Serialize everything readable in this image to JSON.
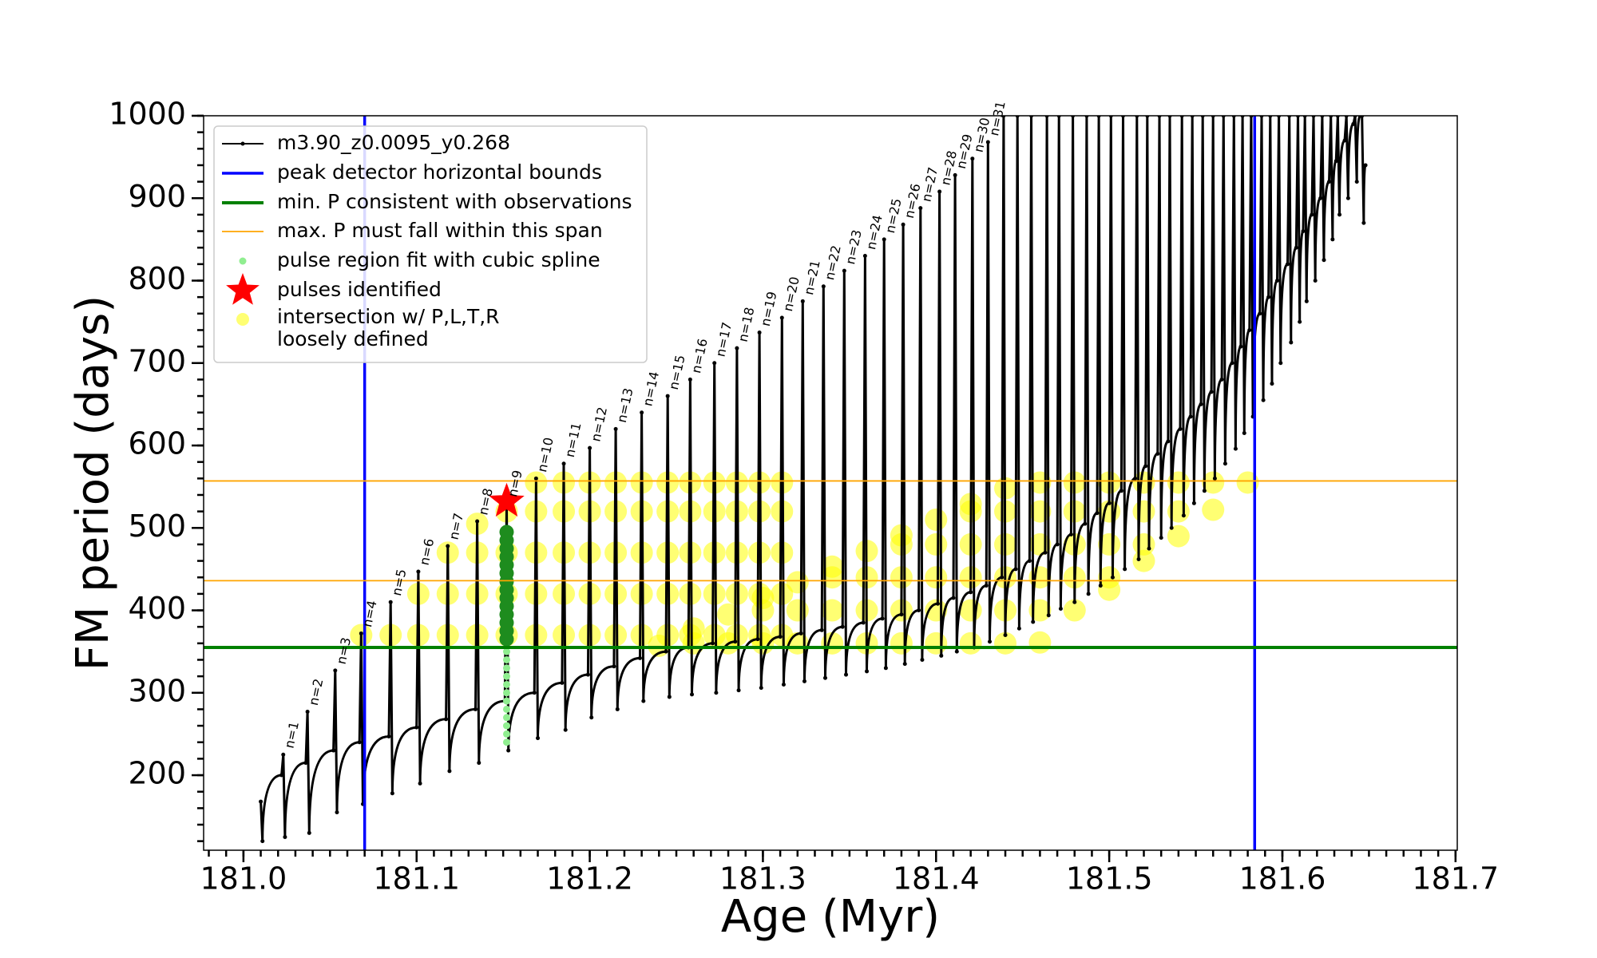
{
  "chart_data": {
    "type": "line",
    "xlabel": "Age (Myr)",
    "ylabel": "FM period (days)",
    "xlim": [
      180.977,
      181.701
    ],
    "ylim": [
      109,
      1000
    ],
    "xticks": [
      {
        "value": 181.0,
        "label": "181.0"
      },
      181.1,
      181.2,
      181.3,
      181.4,
      181.5,
      181.6,
      181.7
    ],
    "yticks": [
      200,
      300,
      400,
      500,
      600,
      700,
      800,
      900,
      1000
    ],
    "minor_ticks": {
      "x": 0.01,
      "y": 20
    },
    "grid": false,
    "legend": "upper left",
    "series": [
      {
        "name": "m3.90_z0.0095_y0.268",
        "type": "line",
        "color": "#000000",
        "x": [
          181.01,
          181.011,
          181.022,
          181.023,
          181.024,
          181.036,
          181.037,
          181.038,
          181.052,
          181.053,
          181.054,
          181.067,
          181.068,
          181.069,
          181.084,
          181.085,
          181.086,
          181.1,
          181.101,
          181.102,
          181.117,
          181.118,
          181.119,
          181.134,
          181.135,
          181.136,
          181.151,
          181.152,
          181.153,
          181.168,
          181.169,
          181.17,
          181.184,
          181.185,
          181.186,
          181.199,
          181.2,
          181.201,
          181.214,
          181.215,
          181.216,
          181.229,
          181.23,
          181.231,
          181.244,
          181.245,
          181.246,
          181.257,
          181.258,
          181.259,
          181.271,
          181.272,
          181.273,
          181.284,
          181.285,
          181.286,
          181.297,
          181.298,
          181.299,
          181.31,
          181.311,
          181.312,
          181.322,
          181.323,
          181.324,
          181.334,
          181.335,
          181.336,
          181.346,
          181.347,
          181.348,
          181.358,
          181.359,
          181.36,
          181.369,
          181.37,
          181.371,
          181.38,
          181.381,
          181.382,
          181.39,
          181.391,
          181.392,
          181.401,
          181.402,
          181.403,
          181.41,
          181.411,
          181.412,
          181.42,
          181.421,
          181.422,
          181.429,
          181.43,
          181.431,
          181.438,
          181.439,
          181.44,
          181.446,
          181.447,
          181.448,
          181.454,
          181.455,
          181.456,
          181.463,
          181.464,
          181.465,
          181.47,
          181.471,
          181.472,
          181.478,
          181.479,
          181.48,
          181.486,
          181.487,
          181.488,
          181.493,
          181.494,
          181.495,
          181.5,
          181.501,
          181.502,
          181.507,
          181.508,
          181.509,
          181.515,
          181.516,
          181.517,
          181.521,
          181.522,
          181.523,
          181.528,
          181.529,
          181.53,
          181.534,
          181.535,
          181.536,
          181.541,
          181.542,
          181.543,
          181.547,
          181.548,
          181.549,
          181.553,
          181.554,
          181.555,
          181.559,
          181.56,
          181.561,
          181.565,
          181.566,
          181.567,
          181.571,
          181.572,
          181.573,
          181.576,
          181.577,
          181.578,
          181.581,
          181.582,
          181.583,
          181.587,
          181.588,
          181.589,
          181.592,
          181.593,
          181.594,
          181.597,
          181.598,
          181.599,
          181.603,
          181.604,
          181.605,
          181.608,
          181.609,
          181.61,
          181.612,
          181.613,
          181.614,
          181.617,
          181.618,
          181.619,
          181.622,
          181.623,
          181.624,
          181.627,
          181.628,
          181.629,
          181.631,
          181.632,
          181.633,
          181.636,
          181.637,
          181.638,
          181.641,
          181.642,
          181.643,
          181.645,
          181.646,
          181.647,
          181.648
        ],
        "values": [
          168,
          120,
          200,
          225,
          125,
          215,
          277,
          130,
          230,
          327,
          155,
          240,
          372,
          165,
          247,
          410,
          178,
          258,
          447,
          190,
          268,
          478,
          205,
          280,
          508,
          215,
          290,
          530,
          230,
          300,
          560,
          245,
          312,
          578,
          255,
          322,
          597,
          270,
          332,
          620,
          280,
          342,
          640,
          290,
          350,
          660,
          295,
          355,
          680,
          298,
          360,
          700,
          300,
          362,
          718,
          303,
          365,
          737,
          306,
          368,
          755,
          310,
          372,
          775,
          314,
          376,
          793,
          318,
          380,
          812,
          322,
          385,
          830,
          326,
          390,
          850,
          330,
          395,
          868,
          335,
          400,
          888,
          340,
          408,
          908,
          345,
          415,
          928,
          350,
          422,
          948,
          355,
          430,
          968,
          362,
          440,
          1000,
          370,
          450,
          1000,
          378,
          460,
          1000,
          386,
          470,
          1000,
          394,
          480,
          1000,
          402,
          492,
          1000,
          410,
          505,
          1000,
          420,
          518,
          1000,
          430,
          530,
          1000,
          440,
          545,
          1000,
          450,
          560,
          1000,
          462,
          575,
          1000,
          475,
          590,
          1000,
          488,
          605,
          1000,
          500,
          620,
          1000,
          515,
          635,
          1000,
          530,
          650,
          1000,
          545,
          665,
          1000,
          560,
          680,
          1000,
          578,
          700,
          1000,
          596,
          720,
          1000,
          615,
          740,
          1000,
          635,
          760,
          1000,
          655,
          780,
          1000,
          675,
          800,
          1000,
          700,
          820,
          1000,
          725,
          840,
          1000,
          750,
          860,
          1000,
          775,
          880,
          1000,
          800,
          900,
          1000,
          825,
          920,
          1000,
          850,
          945,
          1000,
          880,
          970,
          1000,
          900,
          990,
          1000,
          920,
          1000,
          1000,
          870,
          940
        ]
      },
      {
        "name": "pulse region fit with cubic spline",
        "type": "scatter",
        "color": "#90ee90",
        "x": [
          181.152,
          181.152,
          181.152,
          181.152,
          181.152,
          181.152,
          181.152,
          181.152,
          181.152,
          181.152,
          181.152,
          181.152
        ],
        "values": [
          240,
          250,
          260,
          270,
          280,
          290,
          300,
          310,
          320,
          330,
          340,
          350
        ]
      },
      {
        "type": "scatter",
        "color": "#1e8c1e",
        "x": [
          181.152,
          181.152,
          181.152,
          181.152,
          181.152,
          181.152,
          181.152,
          181.152,
          181.152,
          181.152,
          181.152,
          181.152,
          181.152,
          181.152
        ],
        "values": [
          365,
          375,
          385,
          395,
          405,
          415,
          425,
          435,
          445,
          455,
          465,
          475,
          485,
          495
        ]
      },
      {
        "name": "pulses identified",
        "type": "star",
        "color": "#ff0000",
        "x": [
          181.152
        ],
        "values": [
          532
        ]
      },
      {
        "name": "intersection w/ P,L,T,R\nloosely defined",
        "type": "scatter",
        "color": "#ffff00",
        "x": [
          181.068,
          181.085,
          181.101,
          181.101,
          181.118,
          181.118,
          181.118,
          181.135,
          181.135,
          181.135,
          181.135,
          181.152,
          181.152,
          181.152,
          181.152,
          181.169,
          181.169,
          181.169,
          181.169,
          181.169,
          181.185,
          181.185,
          181.185,
          181.185,
          181.185,
          181.2,
          181.2,
          181.2,
          181.2,
          181.2,
          181.215,
          181.215,
          181.215,
          181.215,
          181.215,
          181.23,
          181.23,
          181.23,
          181.23,
          181.23,
          181.245,
          181.245,
          181.245,
          181.245,
          181.245,
          181.258,
          181.258,
          181.258,
          181.258,
          181.258,
          181.272,
          181.272,
          181.272,
          181.272,
          181.272,
          181.285,
          181.285,
          181.285,
          181.285,
          181.285,
          181.298,
          181.298,
          181.298,
          181.298,
          181.298,
          181.311,
          181.311,
          181.311,
          181.311,
          181.311,
          181.24,
          181.26,
          181.26,
          181.28,
          181.28,
          181.3,
          181.3,
          181.3,
          181.32,
          181.32,
          181.32,
          181.34,
          181.34,
          181.34,
          181.34,
          181.36,
          181.36,
          181.36,
          181.36,
          181.38,
          181.38,
          181.38,
          181.38,
          181.38,
          181.4,
          181.4,
          181.4,
          181.4,
          181.4,
          181.42,
          181.42,
          181.42,
          181.42,
          181.42,
          181.42,
          181.44,
          181.44,
          181.44,
          181.44,
          181.44,
          181.44,
          181.46,
          181.46,
          181.46,
          181.46,
          181.46,
          181.46,
          181.48,
          181.48,
          181.48,
          181.48,
          181.48,
          181.5,
          181.5,
          181.5,
          181.5,
          181.5,
          181.52,
          181.52,
          181.52,
          181.52,
          181.54,
          181.54,
          181.54,
          181.56,
          181.56,
          181.58
        ],
        "values": [
          370,
          370,
          370,
          420,
          370,
          420,
          470,
          370,
          420,
          470,
          505,
          370,
          420,
          470,
          520,
          370,
          420,
          470,
          520,
          555,
          370,
          420,
          470,
          520,
          555,
          370,
          420,
          470,
          520,
          555,
          370,
          420,
          470,
          520,
          555,
          370,
          420,
          470,
          520,
          555,
          370,
          420,
          470,
          520,
          555,
          370,
          420,
          470,
          520,
          555,
          370,
          420,
          470,
          520,
          555,
          370,
          420,
          470,
          520,
          555,
          370,
          420,
          470,
          520,
          555,
          370,
          420,
          470,
          520,
          555,
          357,
          360,
          378,
          360,
          395,
          360,
          400,
          415,
          360,
          400,
          434,
          360,
          400,
          440,
          453,
          360,
          400,
          440,
          472,
          360,
          400,
          440,
          480,
          491,
          360,
          400,
          440,
          480,
          510,
          360,
          400,
          440,
          480,
          520,
          529,
          360,
          400,
          440,
          480,
          520,
          548,
          361,
          400,
          440,
          480,
          520,
          555,
          400,
          440,
          480,
          520,
          555,
          425,
          440,
          480,
          520,
          555,
          460,
          480,
          520,
          555,
          490,
          520,
          555,
          522,
          555,
          555
        ]
      }
    ],
    "reference_lines": [
      {
        "name": "peak detector horizontal bounds",
        "color": "#0000ff",
        "orientation": "vertical",
        "values": [
          181.07,
          181.584
        ]
      },
      {
        "name": "min. P consistent with observations",
        "color": "#008000",
        "orientation": "horizontal",
        "values": [
          355
        ]
      },
      {
        "name": "max. P must fall within this span",
        "color": "#ffa500",
        "orientation": "horizontal",
        "values": [
          436,
          557
        ]
      }
    ],
    "annotations": [
      {
        "text": "n=1",
        "x": 181.023,
        "y": 225
      },
      {
        "text": "n=2",
        "x": 181.037,
        "y": 277
      },
      {
        "text": "n=3",
        "x": 181.053,
        "y": 327
      },
      {
        "text": "n=4",
        "x": 181.068,
        "y": 372
      },
      {
        "text": "n=5",
        "x": 181.085,
        "y": 410
      },
      {
        "text": "n=6",
        "x": 181.101,
        "y": 447
      },
      {
        "text": "n=7",
        "x": 181.118,
        "y": 478
      },
      {
        "text": "n=8",
        "x": 181.135,
        "y": 508
      },
      {
        "text": "n=9",
        "x": 181.152,
        "y": 530
      },
      {
        "text": "n=10",
        "x": 181.169,
        "y": 560
      },
      {
        "text": "n=11",
        "x": 181.185,
        "y": 578
      },
      {
        "text": "n=12",
        "x": 181.2,
        "y": 597
      },
      {
        "text": "n=13",
        "x": 181.215,
        "y": 620
      },
      {
        "text": "n=14",
        "x": 181.23,
        "y": 640
      },
      {
        "text": "n=15",
        "x": 181.245,
        "y": 660
      },
      {
        "text": "n=16",
        "x": 181.258,
        "y": 680
      },
      {
        "text": "n=17",
        "x": 181.272,
        "y": 700
      },
      {
        "text": "n=18",
        "x": 181.285,
        "y": 718
      },
      {
        "text": "n=19",
        "x": 181.298,
        "y": 737
      },
      {
        "text": "n=20",
        "x": 181.311,
        "y": 755
      },
      {
        "text": "n=21",
        "x": 181.323,
        "y": 775
      },
      {
        "text": "n=22",
        "x": 181.335,
        "y": 793
      },
      {
        "text": "n=23",
        "x": 181.347,
        "y": 812
      },
      {
        "text": "n=24",
        "x": 181.359,
        "y": 830
      },
      {
        "text": "n=25",
        "x": 181.37,
        "y": 850
      },
      {
        "text": "n=26",
        "x": 181.381,
        "y": 868
      },
      {
        "text": "n=27",
        "x": 181.391,
        "y": 888
      },
      {
        "text": "n=28",
        "x": 181.402,
        "y": 908
      },
      {
        "text": "n=29",
        "x": 181.411,
        "y": 928
      },
      {
        "text": "n=30",
        "x": 181.421,
        "y": 948
      },
      {
        "text": "n=31",
        "x": 181.43,
        "y": 968
      }
    ]
  }
}
